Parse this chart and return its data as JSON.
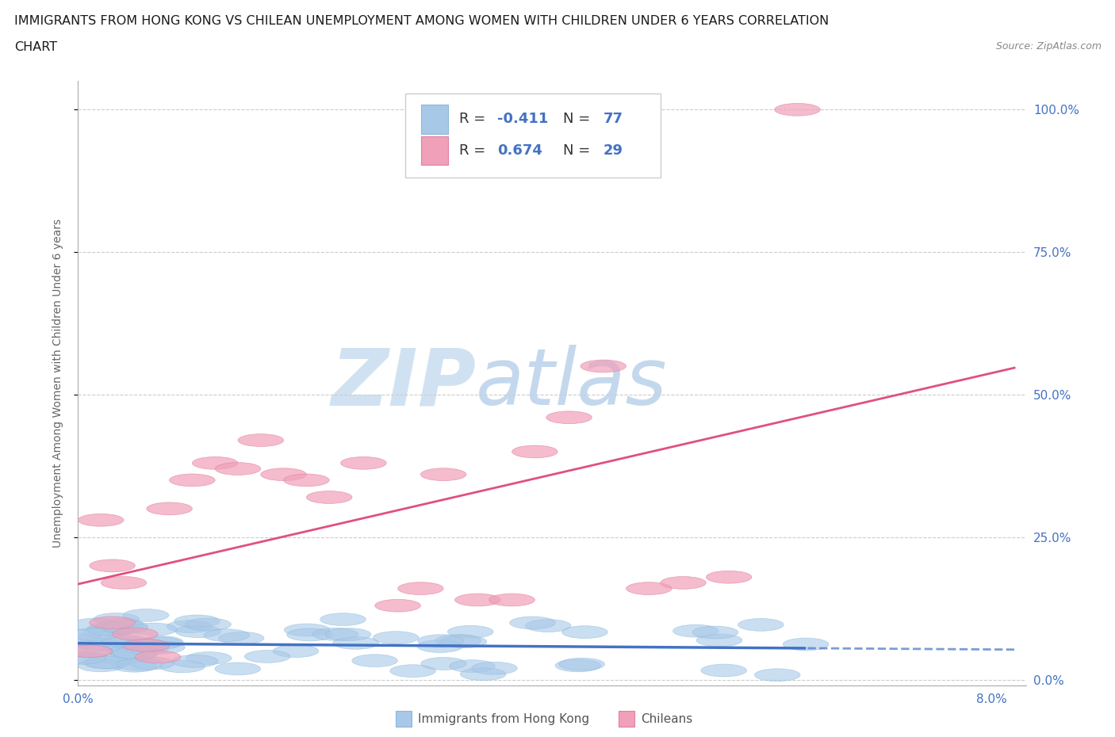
{
  "title_line1": "IMMIGRANTS FROM HONG KONG VS CHILEAN UNEMPLOYMENT AMONG WOMEN WITH CHILDREN UNDER 6 YEARS CORRELATION",
  "title_line2": "CHART",
  "source": "Source: ZipAtlas.com",
  "ylabel": "Unemployment Among Women with Children Under 6 years",
  "xlim": [
    0.0,
    0.083
  ],
  "ylim": [
    -0.01,
    1.05
  ],
  "x_ticks": [
    0.0,
    0.08
  ],
  "x_tick_labels": [
    "0.0%",
    "8.0%"
  ],
  "y_ticks": [
    0.0,
    0.25,
    0.5,
    0.75,
    1.0
  ],
  "y_tick_labels": [
    "0.0%",
    "25.0%",
    "50.0%",
    "75.0%",
    "100.0%"
  ],
  "hk_color": "#a8c8e8",
  "chile_color": "#f0a0b8",
  "hk_line_color": "#4472c4",
  "chile_line_color": "#e05080",
  "legend_label1": "Immigrants from Hong Kong",
  "legend_label2": "Chileans",
  "R1": -0.411,
  "N1": 77,
  "R2": 0.674,
  "N2": 29,
  "blue_text_color": "#4472c4",
  "title_color": "#1a1a1a",
  "source_color": "#888888",
  "tick_color": "#4472c4",
  "grid_color": "#cccccc",
  "watermark_ZIP_color": "#c5d8ee",
  "watermark_atlas_color": "#b8d0e8"
}
